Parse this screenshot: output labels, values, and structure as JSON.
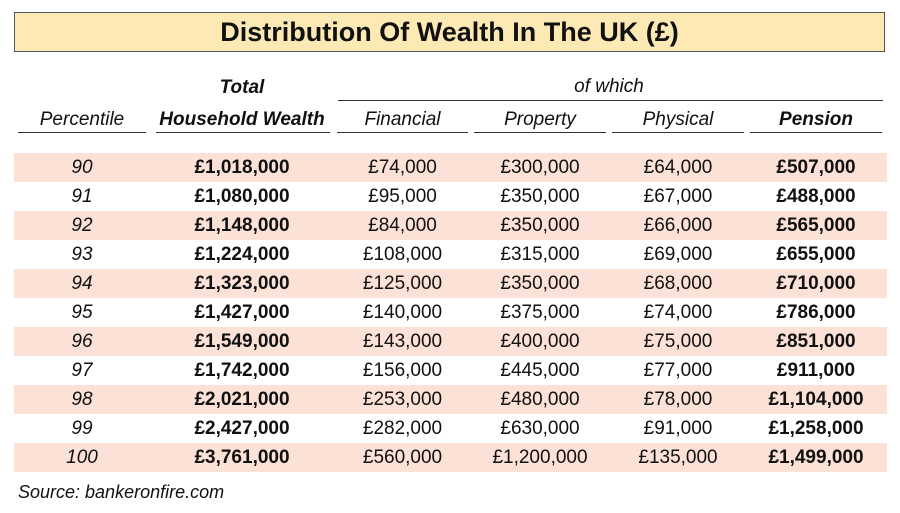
{
  "title": "Distribution Of Wealth In The UK (£)",
  "group_header": "of which",
  "headers": {
    "percentile": "Percentile",
    "total_line1": "Total",
    "total_line2": "Household Wealth",
    "financial": "Financial",
    "property": "Property",
    "physical": "Physical",
    "pension": "Pension"
  },
  "source": "Source: bankeronfire.com",
  "colors": {
    "title_bg": "#fde9b4",
    "row_shade": "#fbe1d6"
  },
  "chart_data": {
    "type": "table",
    "title": "Distribution Of Wealth In The UK (£)",
    "columns": [
      "Percentile",
      "Total Household Wealth",
      "Financial",
      "Property",
      "Physical",
      "Pension"
    ],
    "rows": [
      [
        "90",
        "£1,018,000",
        "£74,000",
        "£300,000",
        "£64,000",
        "£507,000"
      ],
      [
        "91",
        "£1,080,000",
        "£95,000",
        "£350,000",
        "£67,000",
        "£488,000"
      ],
      [
        "92",
        "£1,148,000",
        "£84,000",
        "£350,000",
        "£66,000",
        "£565,000"
      ],
      [
        "93",
        "£1,224,000",
        "£108,000",
        "£315,000",
        "£69,000",
        "£655,000"
      ],
      [
        "94",
        "£1,323,000",
        "£125,000",
        "£350,000",
        "£68,000",
        "£710,000"
      ],
      [
        "95",
        "£1,427,000",
        "£140,000",
        "£375,000",
        "£74,000",
        "£786,000"
      ],
      [
        "96",
        "£1,549,000",
        "£143,000",
        "£400,000",
        "£75,000",
        "£851,000"
      ],
      [
        "97",
        "£1,742,000",
        "£156,000",
        "£445,000",
        "£77,000",
        "£911,000"
      ],
      [
        "98",
        "£2,021,000",
        "£253,000",
        "£480,000",
        "£78,000",
        "£1,104,000"
      ],
      [
        "99",
        "£2,427,000",
        "£282,000",
        "£630,000",
        "£91,000",
        "£1,258,000"
      ],
      [
        "100",
        "£3,761,000",
        "£560,000",
        "£1,200,000",
        "£135,000",
        "£1,499,000"
      ]
    ]
  }
}
